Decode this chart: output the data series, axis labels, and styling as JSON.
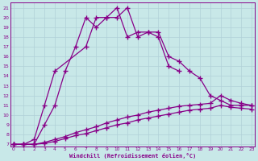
{
  "xlabel": "Windchill (Refroidissement éolien,°C)",
  "x_ticks": [
    0,
    1,
    2,
    3,
    4,
    5,
    6,
    7,
    8,
    9,
    10,
    11,
    12,
    13,
    14,
    15,
    16,
    17,
    18,
    19,
    20,
    21,
    22,
    23
  ],
  "y_ticks": [
    7,
    8,
    9,
    10,
    11,
    12,
    13,
    14,
    15,
    16,
    17,
    18,
    19,
    20,
    21
  ],
  "ylim": [
    6.8,
    21.5
  ],
  "xlim": [
    -0.3,
    23.3
  ],
  "background_color": "#c8e8e8",
  "grid_color": "#b0d0d8",
  "line_color": "#880088",
  "line_width": 0.9,
  "marker": "+",
  "marker_size": 4,
  "marker_edge_width": 1.0,
  "curves": {
    "curve1_x": [
      0,
      1,
      2,
      3,
      4,
      5,
      6,
      7,
      8,
      9,
      10,
      11,
      12,
      13,
      14,
      15,
      16
    ],
    "curve1_y": [
      7,
      7,
      7,
      9,
      11,
      14.5,
      17,
      20,
      19,
      20,
      21,
      18,
      18.5,
      18.5,
      18,
      15,
      14.5
    ],
    "curve2_x": [
      0,
      1,
      2,
      3,
      4,
      7,
      8,
      9,
      10,
      11,
      12,
      13,
      14,
      15,
      16,
      17,
      18,
      19,
      20,
      21,
      22,
      23
    ],
    "curve2_y": [
      7,
      7,
      7.5,
      11,
      14.5,
      17,
      20,
      20,
      20,
      21,
      18,
      18.5,
      18.5,
      16,
      15.5,
      14.5,
      13.8,
      12,
      11.5,
      11,
      11,
      11
    ],
    "curve3_x": [
      0,
      1,
      2,
      3,
      4,
      5,
      6,
      7,
      8,
      9,
      10,
      11,
      12,
      13,
      14,
      15,
      16,
      17,
      18,
      19,
      20,
      21,
      22,
      23
    ],
    "curve3_y": [
      7,
      7,
      7,
      7.2,
      7.5,
      7.8,
      8.2,
      8.5,
      8.8,
      9.2,
      9.5,
      9.8,
      10,
      10.3,
      10.5,
      10.7,
      10.9,
      11,
      11.1,
      11.2,
      12,
      11.5,
      11.2,
      11
    ],
    "curve4_x": [
      0,
      1,
      2,
      3,
      4,
      5,
      6,
      7,
      8,
      9,
      10,
      11,
      12,
      13,
      14,
      15,
      16,
      17,
      18,
      19,
      20,
      21,
      22,
      23
    ],
    "curve4_y": [
      7,
      7,
      7,
      7.1,
      7.3,
      7.6,
      7.9,
      8.1,
      8.4,
      8.7,
      9.0,
      9.2,
      9.5,
      9.7,
      9.9,
      10.1,
      10.3,
      10.5,
      10.6,
      10.7,
      11,
      10.8,
      10.7,
      10.6
    ]
  }
}
